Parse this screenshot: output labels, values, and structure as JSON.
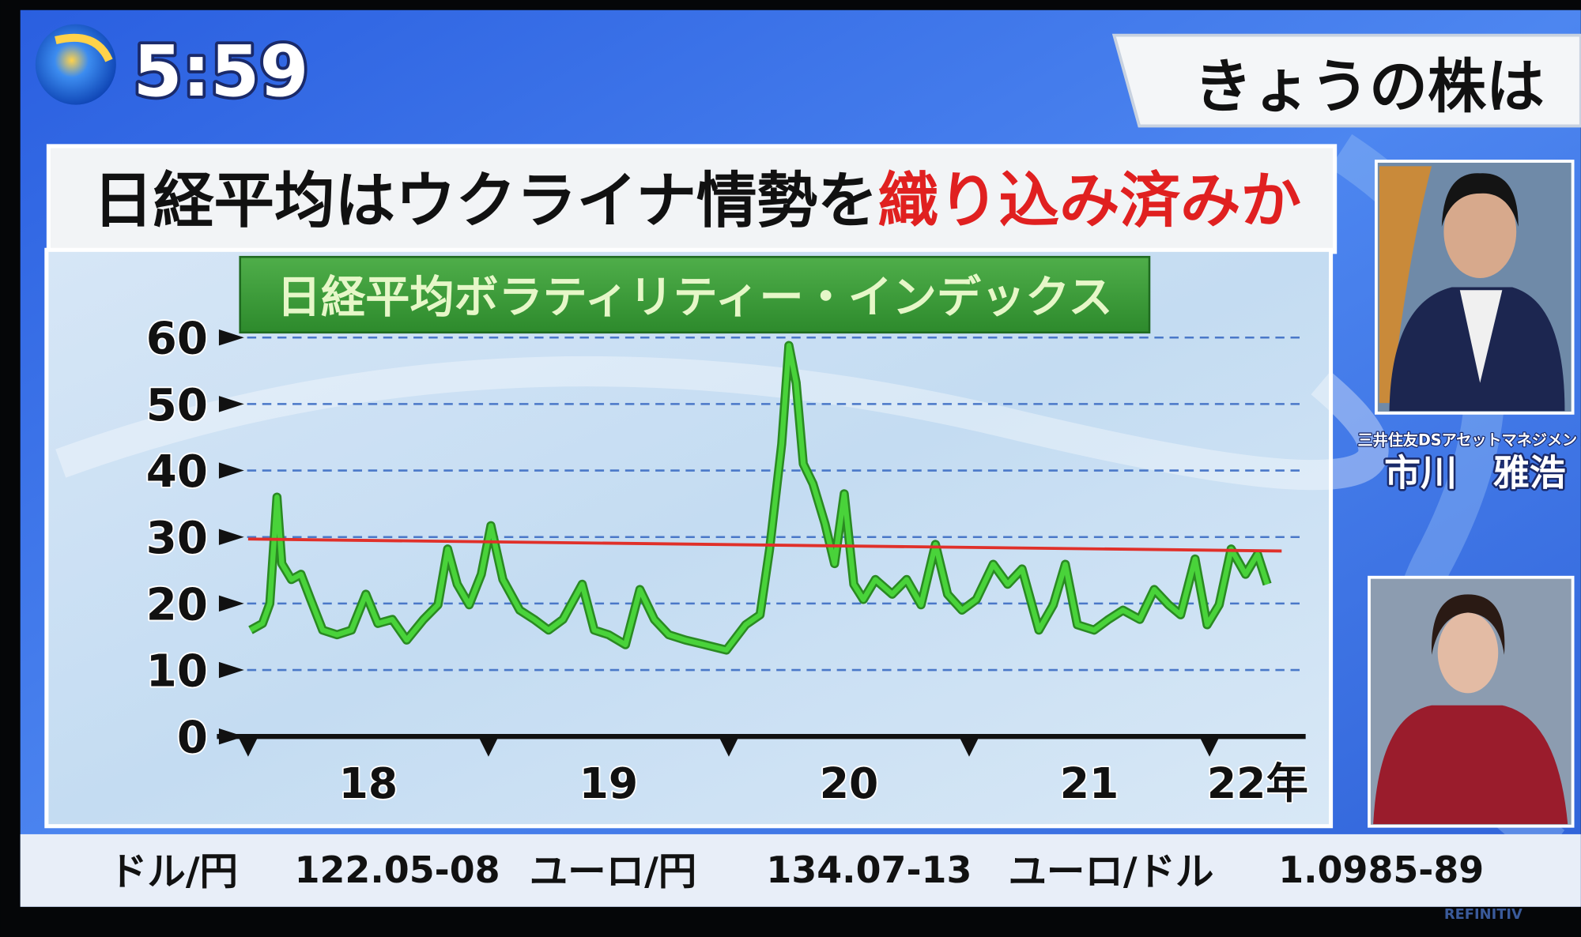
{
  "clock": "5:59",
  "header": "きょうの株は",
  "headline": {
    "lead": "日経平均はウクライナ情勢を",
    "emphasis": "織り込み済みか"
  },
  "guest": {
    "affiliation": "三井住友DSアセットマネジメント",
    "name": "市川　雅浩"
  },
  "ticker": [
    {
      "label": "ドル/円",
      "value": "122.05-08"
    },
    {
      "label": "ユーロ/円",
      "value": "134.07-13"
    },
    {
      "label": "ユーロ/ドル",
      "value": "1.0985-89"
    }
  ],
  "source": "REFINITIV",
  "chart_data": {
    "type": "line",
    "title": "日経平均ボラティリティー・インデックス",
    "xlim": [
      2017.87,
      2022.4
    ],
    "xticks": [
      {
        "value": 2018.5,
        "label": "18"
      },
      {
        "value": 2019.5,
        "label": "19"
      },
      {
        "value": 2020.5,
        "label": "20"
      },
      {
        "value": 2021.5,
        "label": "21"
      },
      {
        "value": 2022.2,
        "label": "22年"
      }
    ],
    "xtick_marks": [
      2018,
      2019,
      2020,
      2021,
      2022
    ],
    "ylim": [
      0,
      62
    ],
    "yticks": [
      0,
      10,
      20,
      30,
      40,
      50,
      60
    ],
    "grid": true,
    "series": [
      {
        "color": "#49d33a",
        "x": [
          2018.01,
          2018.06,
          2018.09,
          2018.12,
          2018.14,
          2018.18,
          2018.22,
          2018.26,
          2018.31,
          2018.37,
          2018.43,
          2018.49,
          2018.54,
          2018.6,
          2018.66,
          2018.73,
          2018.79,
          2018.83,
          2018.87,
          2018.92,
          2018.97,
          2019.01,
          2019.06,
          2019.13,
          2019.19,
          2019.25,
          2019.31,
          2019.39,
          2019.44,
          2019.5,
          2019.57,
          2019.63,
          2019.69,
          2019.75,
          2019.82,
          2019.9,
          2019.99,
          2020.07,
          2020.13,
          2020.17,
          2020.22,
          2020.25,
          2020.28,
          2020.31,
          2020.35,
          2020.4,
          2020.44,
          2020.48,
          2020.52,
          2020.56,
          2020.61,
          2020.68,
          2020.74,
          2020.8,
          2020.86,
          2020.91,
          2020.97,
          2021.03,
          2021.1,
          2021.16,
          2021.22,
          2021.29,
          2021.35,
          2021.4,
          2021.45,
          2021.52,
          2021.58,
          2021.64,
          2021.71,
          2021.77,
          2021.83,
          2021.88,
          2021.94,
          2021.99,
          2022.04,
          2022.09,
          2022.15,
          2022.2,
          2022.24
        ],
        "values": [
          16,
          17,
          20,
          36,
          26,
          23.6,
          24.4,
          20.6,
          16,
          15.3,
          16,
          21.4,
          17,
          17.6,
          14.5,
          17.6,
          19.8,
          28.2,
          22.9,
          19.8,
          24.4,
          31.7,
          23.6,
          19,
          17.6,
          16,
          17.6,
          22.9,
          16,
          15.3,
          13.8,
          22.1,
          17.6,
          15.3,
          14.5,
          13.8,
          13,
          16.8,
          18.3,
          28.2,
          44,
          58.8,
          53.2,
          41,
          38,
          32,
          26,
          36.5,
          22.9,
          20.6,
          23.6,
          21.4,
          23.6,
          19.8,
          28.9,
          21.4,
          19,
          20.6,
          25.9,
          22.9,
          25.2,
          16,
          19.8,
          25.9,
          16.8,
          16,
          17.6,
          19,
          17.6,
          22.1,
          19.8,
          18.3,
          26.7,
          16.8,
          19.8,
          28.2,
          24.4,
          27.4,
          22.9
        ]
      },
      {
        "color": "#e0302a",
        "x": [
          2018,
          2022.3
        ],
        "values": [
          29.7,
          27.9
        ]
      }
    ]
  }
}
